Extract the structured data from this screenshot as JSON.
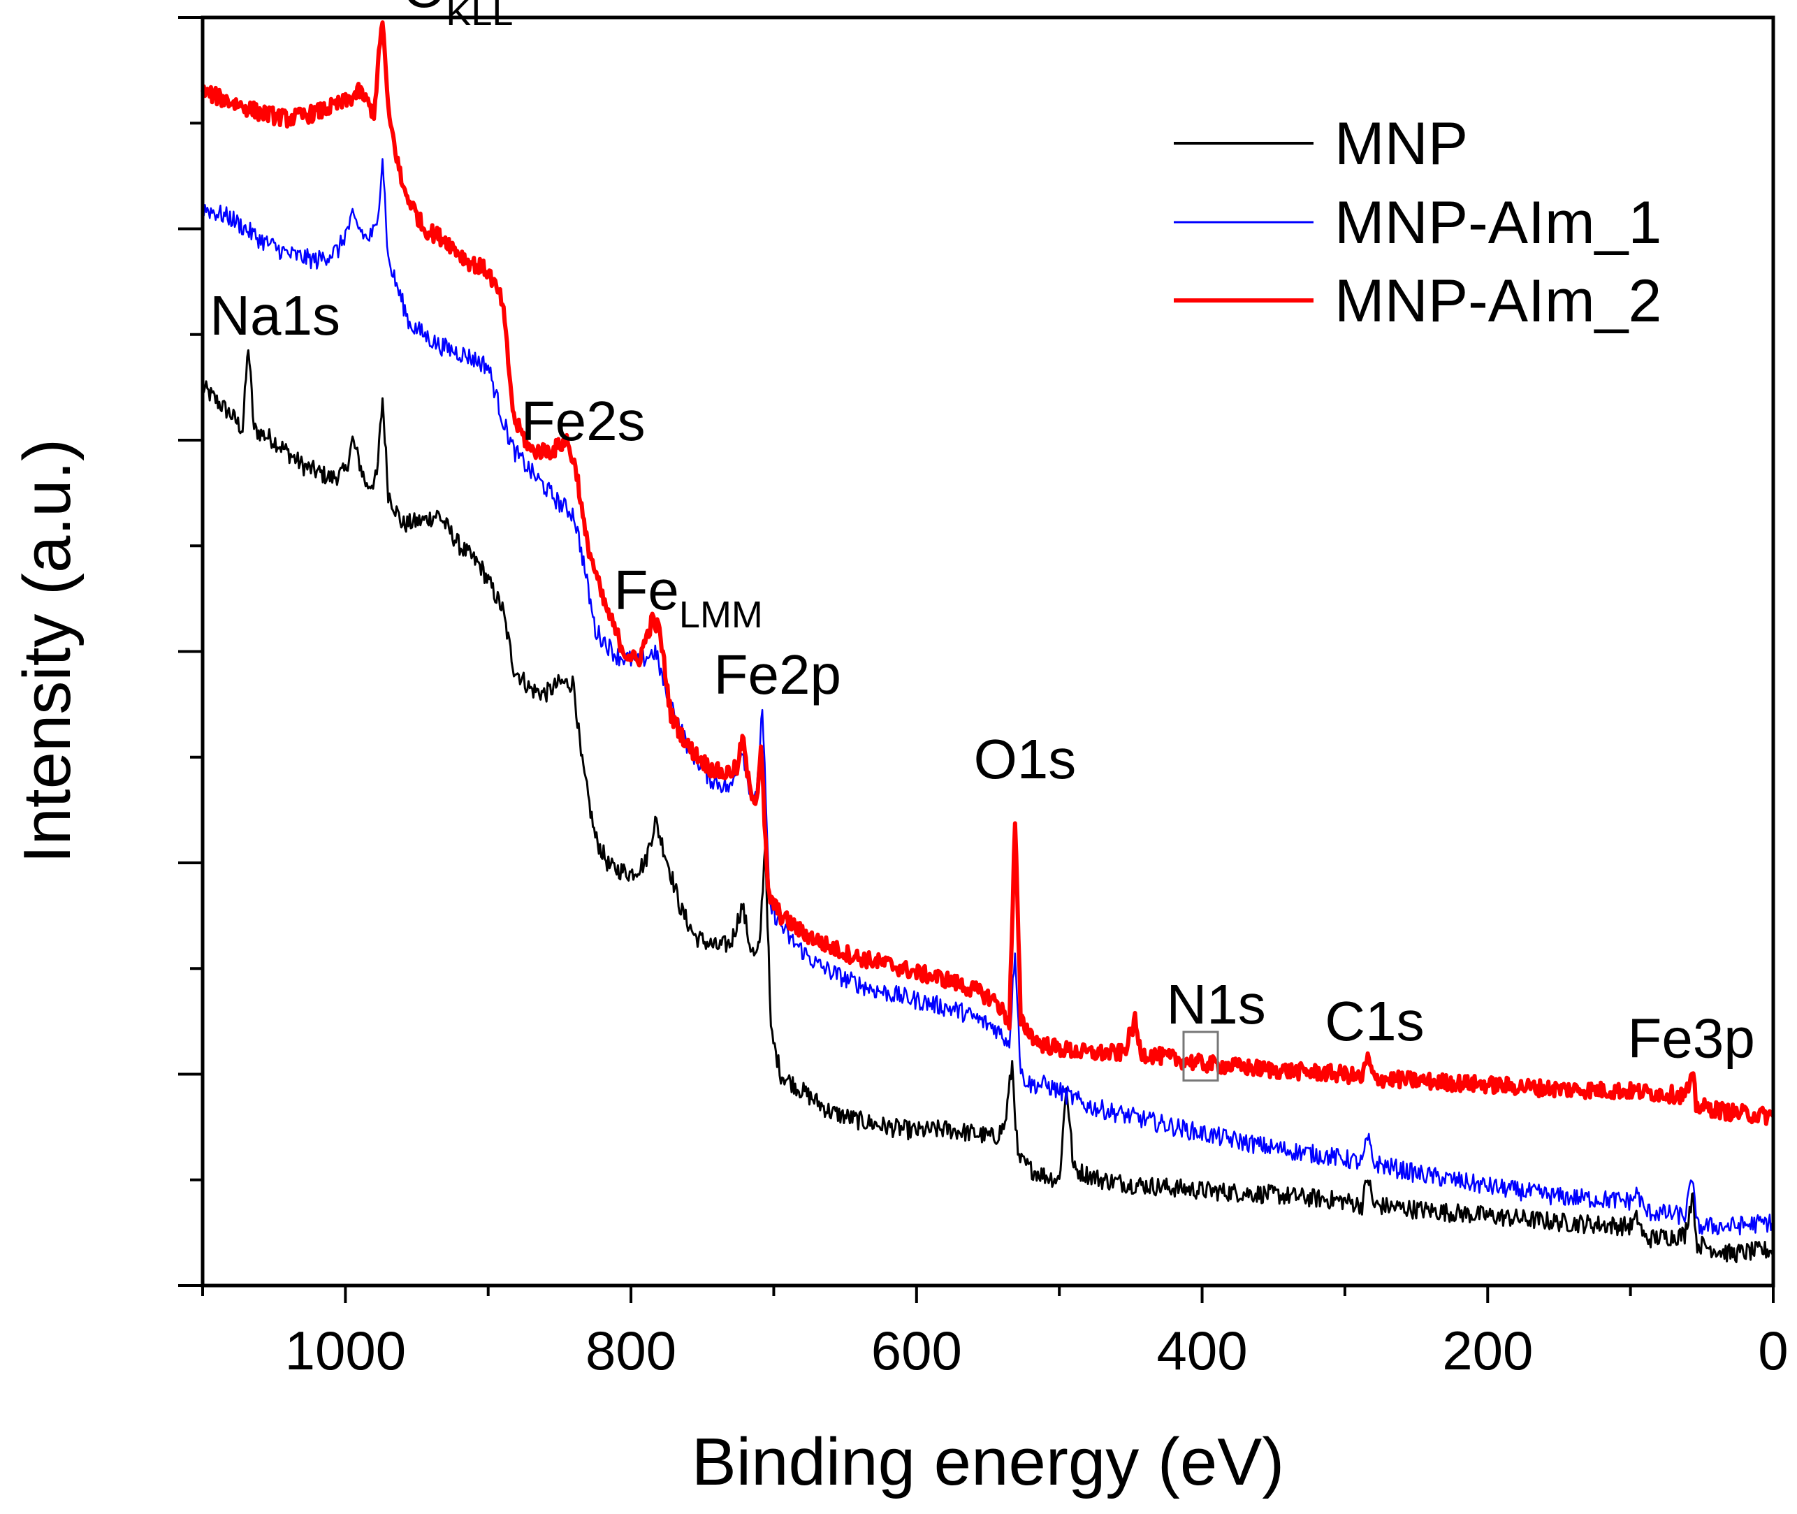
{
  "chart_data": {
    "type": "line",
    "title": "",
    "xlabel": "Binding energy (eV)",
    "ylabel": "Intensity (a.u.)",
    "xlim": [
      1100,
      0
    ],
    "ylim": [
      0,
      6
    ],
    "x_ticks": [
      1000,
      800,
      600,
      400,
      200,
      0
    ],
    "x_tick_labels": [
      "1000",
      "800",
      "600",
      "400",
      "200",
      "0"
    ],
    "y_tick_labels_shown": false,
    "legend_position": "top-right",
    "series": [
      {
        "name": "MNP",
        "color": "#000000",
        "points": [
          [
            1100,
            4.25
          ],
          [
            1080,
            4.12
          ],
          [
            1072,
            4.05
          ],
          [
            1068,
            4.45
          ],
          [
            1064,
            4.05
          ],
          [
            1050,
            4.0
          ],
          [
            1030,
            3.88
          ],
          [
            1010,
            3.82
          ],
          [
            1000,
            3.85
          ],
          [
            995,
            4.0
          ],
          [
            985,
            3.78
          ],
          [
            978,
            3.82
          ],
          [
            974,
            4.2
          ],
          [
            970,
            3.75
          ],
          [
            960,
            3.6
          ],
          [
            945,
            3.62
          ],
          [
            935,
            3.65
          ],
          [
            920,
            3.5
          ],
          [
            905,
            3.4
          ],
          [
            890,
            3.2
          ],
          [
            882,
            2.92
          ],
          [
            870,
            2.82
          ],
          [
            860,
            2.8
          ],
          [
            850,
            2.85
          ],
          [
            840,
            2.85
          ],
          [
            835,
            2.5
          ],
          [
            825,
            2.12
          ],
          [
            815,
            1.98
          ],
          [
            800,
            1.95
          ],
          [
            790,
            2.0
          ],
          [
            783,
            2.2
          ],
          [
            775,
            2.02
          ],
          [
            765,
            1.78
          ],
          [
            755,
            1.65
          ],
          [
            740,
            1.6
          ],
          [
            730,
            1.62
          ],
          [
            722,
            1.8
          ],
          [
            717,
            1.62
          ],
          [
            713,
            1.55
          ],
          [
            710,
            1.6
          ],
          [
            706,
            2.1
          ],
          [
            702,
            1.2
          ],
          [
            695,
            1.0
          ],
          [
            680,
            0.92
          ],
          [
            660,
            0.82
          ],
          [
            640,
            0.78
          ],
          [
            620,
            0.75
          ],
          [
            600,
            0.73
          ],
          [
            580,
            0.74
          ],
          [
            560,
            0.72
          ],
          [
            545,
            0.7
          ],
          [
            538,
            0.76
          ],
          [
            533,
            1.05
          ],
          [
            529,
            0.6
          ],
          [
            520,
            0.55
          ],
          [
            510,
            0.52
          ],
          [
            500,
            0.5
          ],
          [
            495,
            0.95
          ],
          [
            490,
            0.55
          ],
          [
            470,
            0.5
          ],
          [
            450,
            0.48
          ],
          [
            400,
            0.45
          ],
          [
            350,
            0.43
          ],
          [
            300,
            0.4
          ],
          [
            288,
            0.38
          ],
          [
            284,
            0.52
          ],
          [
            280,
            0.38
          ],
          [
            250,
            0.36
          ],
          [
            200,
            0.33
          ],
          [
            150,
            0.3
          ],
          [
            100,
            0.28
          ],
          [
            95,
            0.32
          ],
          [
            90,
            0.22
          ],
          [
            62,
            0.24
          ],
          [
            56,
            0.45
          ],
          [
            54,
            0.2
          ],
          [
            30,
            0.15
          ],
          [
            0,
            0.17
          ]
        ]
      },
      {
        "name": "MNP-AIm_1",
        "color": "#0000ff",
        "points": [
          [
            1100,
            5.1
          ],
          [
            1080,
            5.05
          ],
          [
            1060,
            4.95
          ],
          [
            1040,
            4.88
          ],
          [
            1020,
            4.85
          ],
          [
            1005,
            4.9
          ],
          [
            995,
            5.05
          ],
          [
            985,
            4.95
          ],
          [
            978,
            5.0
          ],
          [
            974,
            5.35
          ],
          [
            970,
            4.85
          ],
          [
            955,
            4.55
          ],
          [
            935,
            4.45
          ],
          [
            915,
            4.4
          ],
          [
            900,
            4.35
          ],
          [
            890,
            4.1
          ],
          [
            882,
            3.95
          ],
          [
            870,
            3.85
          ],
          [
            850,
            3.7
          ],
          [
            840,
            3.65
          ],
          [
            834,
            3.45
          ],
          [
            825,
            3.1
          ],
          [
            810,
            2.98
          ],
          [
            795,
            2.95
          ],
          [
            783,
            3.0
          ],
          [
            775,
            2.8
          ],
          [
            760,
            2.55
          ],
          [
            745,
            2.4
          ],
          [
            730,
            2.35
          ],
          [
            722,
            2.55
          ],
          [
            718,
            2.38
          ],
          [
            712,
            2.3
          ],
          [
            708,
            2.75
          ],
          [
            703,
            1.8
          ],
          [
            690,
            1.65
          ],
          [
            670,
            1.52
          ],
          [
            650,
            1.45
          ],
          [
            630,
            1.4
          ],
          [
            600,
            1.35
          ],
          [
            570,
            1.3
          ],
          [
            545,
            1.22
          ],
          [
            535,
            1.15
          ],
          [
            531,
            1.6
          ],
          [
            527,
            1.0
          ],
          [
            520,
            0.95
          ],
          [
            510,
            0.95
          ],
          [
            500,
            0.92
          ],
          [
            480,
            0.85
          ],
          [
            450,
            0.8
          ],
          [
            400,
            0.72
          ],
          [
            350,
            0.65
          ],
          [
            300,
            0.6
          ],
          [
            288,
            0.58
          ],
          [
            284,
            0.7
          ],
          [
            280,
            0.58
          ],
          [
            250,
            0.53
          ],
          [
            200,
            0.47
          ],
          [
            150,
            0.42
          ],
          [
            100,
            0.4
          ],
          [
            95,
            0.44
          ],
          [
            90,
            0.35
          ],
          [
            62,
            0.33
          ],
          [
            56,
            0.52
          ],
          [
            54,
            0.28
          ],
          [
            30,
            0.28
          ],
          [
            0,
            0.3
          ]
        ]
      },
      {
        "name": "MNP-AIm_2",
        "color": "#ff0000",
        "points": [
          [
            1100,
            5.65
          ],
          [
            1080,
            5.6
          ],
          [
            1060,
            5.55
          ],
          [
            1040,
            5.52
          ],
          [
            1020,
            5.55
          ],
          [
            1000,
            5.6
          ],
          [
            990,
            5.65
          ],
          [
            980,
            5.55
          ],
          [
            974,
            6.0
          ],
          [
            970,
            5.55
          ],
          [
            960,
            5.2
          ],
          [
            945,
            5.0
          ],
          [
            930,
            4.95
          ],
          [
            915,
            4.85
          ],
          [
            900,
            4.8
          ],
          [
            890,
            4.65
          ],
          [
            882,
            4.1
          ],
          [
            870,
            3.95
          ],
          [
            855,
            3.95
          ],
          [
            845,
            4.0
          ],
          [
            838,
            3.85
          ],
          [
            832,
            3.55
          ],
          [
            820,
            3.25
          ],
          [
            805,
            3.0
          ],
          [
            795,
            2.95
          ],
          [
            785,
            3.15
          ],
          [
            780,
            3.1
          ],
          [
            772,
            2.7
          ],
          [
            760,
            2.55
          ],
          [
            745,
            2.45
          ],
          [
            735,
            2.42
          ],
          [
            725,
            2.45
          ],
          [
            722,
            2.6
          ],
          [
            717,
            2.35
          ],
          [
            712,
            2.3
          ],
          [
            709,
            2.55
          ],
          [
            704,
            1.85
          ],
          [
            695,
            1.75
          ],
          [
            680,
            1.67
          ],
          [
            660,
            1.6
          ],
          [
            640,
            1.55
          ],
          [
            620,
            1.52
          ],
          [
            600,
            1.48
          ],
          [
            580,
            1.45
          ],
          [
            560,
            1.4
          ],
          [
            545,
            1.35
          ],
          [
            535,
            1.25
          ],
          [
            531,
            2.2
          ],
          [
            527,
            1.25
          ],
          [
            515,
            1.15
          ],
          [
            500,
            1.12
          ],
          [
            480,
            1.1
          ],
          [
            455,
            1.1
          ],
          [
            447,
            1.25
          ],
          [
            443,
            1.1
          ],
          [
            400,
            1.05
          ],
          [
            350,
            1.02
          ],
          [
            300,
            1.0
          ],
          [
            288,
            0.98
          ],
          [
            284,
            1.08
          ],
          [
            280,
            0.98
          ],
          [
            250,
            0.97
          ],
          [
            200,
            0.95
          ],
          [
            150,
            0.93
          ],
          [
            100,
            0.92
          ],
          [
            62,
            0.9
          ],
          [
            56,
            0.98
          ],
          [
            54,
            0.85
          ],
          [
            30,
            0.82
          ],
          [
            0,
            0.8
          ]
        ]
      }
    ],
    "annotations": [
      {
        "id": "okll",
        "text": "O",
        "subscript": "KLL",
        "x": 960,
        "y": 6.05
      },
      {
        "id": "na1s",
        "text": "Na1s",
        "x": 1095,
        "y": 4.5
      },
      {
        "id": "fe2s",
        "text": "Fe2s",
        "x": 877,
        "y": 4.0
      },
      {
        "id": "felmm",
        "text": "Fe",
        "subscript": "LMM",
        "x": 812,
        "y": 3.2
      },
      {
        "id": "fe2p",
        "text": "Fe2p",
        "x": 742,
        "y": 2.8
      },
      {
        "id": "o1s",
        "text": "O1s",
        "x": 560,
        "y": 2.4
      },
      {
        "id": "n1s",
        "text": "N1s",
        "x": 425,
        "y": 1.24
      },
      {
        "id": "c1s",
        "text": "C1s",
        "x": 314,
        "y": 1.16
      },
      {
        "id": "fe3p",
        "text": "Fe3p",
        "x": 102,
        "y": 1.08
      }
    ],
    "highlight_box": {
      "x_range": [
        413,
        389
      ],
      "y_range": [
        0.97,
        1.2
      ]
    }
  }
}
